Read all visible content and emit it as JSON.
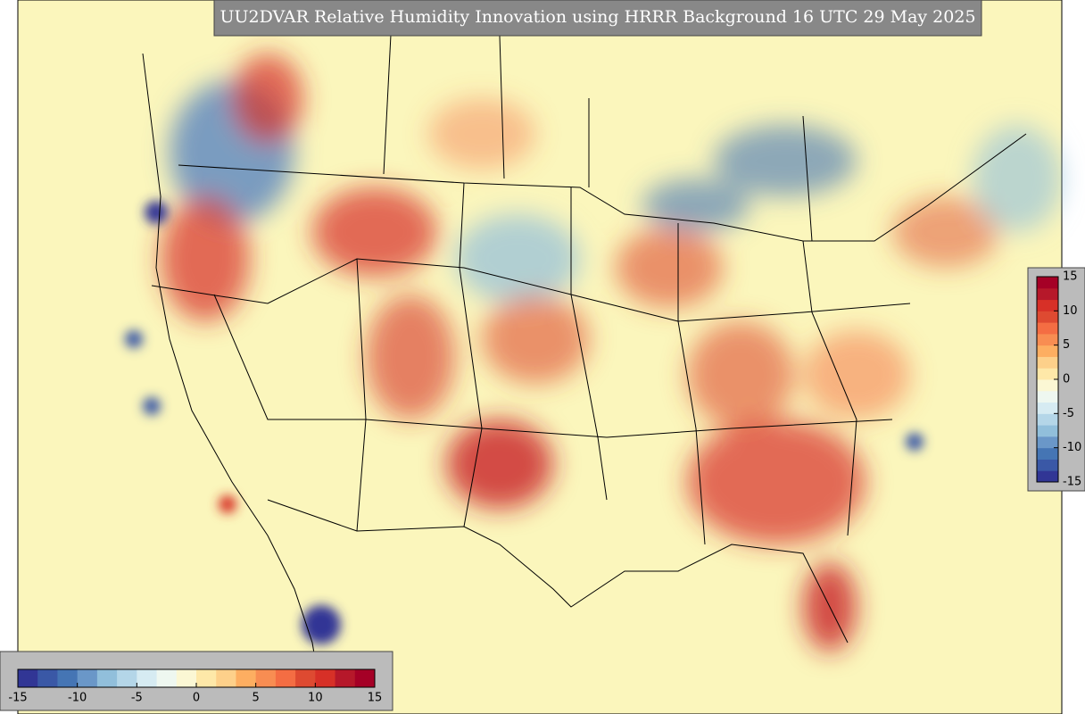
{
  "title": "UU2DVAR Relative Humidity Innovation using HRRR Background 16 UTC 29 May 2025",
  "colormap": [
    "#313695",
    "#3a58a6",
    "#4575b4",
    "#6a97c8",
    "#91bfdb",
    "#b4d6e8",
    "#d6ebf2",
    "#eef7f0",
    "#fbf7d4",
    "#fee8a8",
    "#fdd08a",
    "#fdae61",
    "#f88d52",
    "#f46d43",
    "#de4a31",
    "#d73027",
    "#b6182a",
    "#a50026"
  ],
  "colorbars": [
    {
      "orientation": "vertical",
      "range": [
        -15,
        15
      ],
      "ticks": [
        -15,
        -10,
        -5,
        0,
        5,
        10,
        15
      ]
    },
    {
      "orientation": "horizontal",
      "range": [
        -15,
        15
      ],
      "ticks": [
        -15,
        -10,
        -5,
        0,
        5,
        10,
        15
      ]
    }
  ]
}
